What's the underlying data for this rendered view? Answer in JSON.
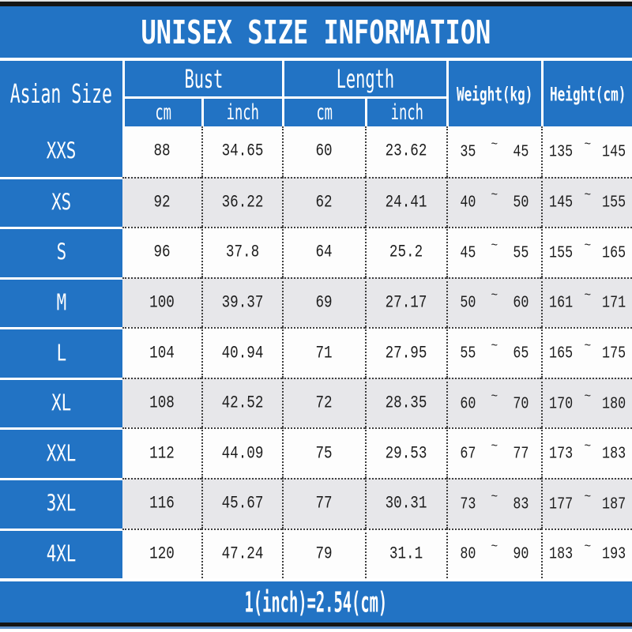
{
  "title": "UNISEX SIZE INFORMATION",
  "header": {
    "size_col": "Asian Size",
    "groups": [
      {
        "label": "Bust",
        "subs": [
          "cm",
          "inch"
        ]
      },
      {
        "label": "Length",
        "subs": [
          "cm",
          "inch"
        ]
      }
    ],
    "weight": "Weight(kg)",
    "height": "Height(cm)"
  },
  "symbols": {
    "range_tilde": "~"
  },
  "rows": [
    {
      "size": "XXS",
      "bust_cm": "88",
      "bust_in": "34.65",
      "len_cm": "60",
      "len_in": "23.62",
      "w1": "35",
      "w2": "45",
      "h1": "135",
      "h2": "145"
    },
    {
      "size": "XS",
      "bust_cm": "92",
      "bust_in": "36.22",
      "len_cm": "62",
      "len_in": "24.41",
      "w1": "40",
      "w2": "50",
      "h1": "145",
      "h2": "155"
    },
    {
      "size": "S",
      "bust_cm": "96",
      "bust_in": "37.8",
      "len_cm": "64",
      "len_in": "25.2",
      "w1": "45",
      "w2": "55",
      "h1": "155",
      "h2": "165"
    },
    {
      "size": "M",
      "bust_cm": "100",
      "bust_in": "39.37",
      "len_cm": "69",
      "len_in": "27.17",
      "w1": "50",
      "w2": "60",
      "h1": "161",
      "h2": "171"
    },
    {
      "size": "L",
      "bust_cm": "104",
      "bust_in": "40.94",
      "len_cm": "71",
      "len_in": "27.95",
      "w1": "55",
      "w2": "65",
      "h1": "165",
      "h2": "175"
    },
    {
      "size": "XL",
      "bust_cm": "108",
      "bust_in": "42.52",
      "len_cm": "72",
      "len_in": "28.35",
      "w1": "60",
      "w2": "70",
      "h1": "170",
      "h2": "180"
    },
    {
      "size": "XXL",
      "bust_cm": "112",
      "bust_in": "44.09",
      "len_cm": "75",
      "len_in": "29.53",
      "w1": "67",
      "w2": "77",
      "h1": "173",
      "h2": "183"
    },
    {
      "size": "3XL",
      "bust_cm": "116",
      "bust_in": "45.67",
      "len_cm": "77",
      "len_in": "30.31",
      "w1": "73",
      "w2": "83",
      "h1": "177",
      "h2": "187"
    },
    {
      "size": "4XL",
      "bust_cm": "120",
      "bust_in": "47.24",
      "len_cm": "79",
      "len_in": "31.1",
      "w1": "80",
      "w2": "90",
      "h1": "183",
      "h2": "193"
    }
  ],
  "footer": "1(inch)=2.54(cm)",
  "colors": {
    "accent_blue": "#2273c4",
    "stripe_gray": "#e7e7ea",
    "bar_black": "#151515",
    "text_on_blue": "#ffffff",
    "body_text": "#1d1d1d"
  },
  "chart_data": {
    "type": "table",
    "title": "UNISEX SIZE INFORMATION",
    "columns": [
      "Asian Size",
      "Bust cm",
      "Bust inch",
      "Length cm",
      "Length inch",
      "Weight(kg)",
      "Height(cm)"
    ],
    "rows": [
      [
        "XXS",
        88,
        34.65,
        60,
        23.62,
        "35~45",
        "135~145"
      ],
      [
        "XS",
        92,
        36.22,
        62,
        24.41,
        "40~50",
        "145~155"
      ],
      [
        "S",
        96,
        37.8,
        64,
        25.2,
        "45~55",
        "155~165"
      ],
      [
        "M",
        100,
        39.37,
        69,
        27.17,
        "50~60",
        "161~171"
      ],
      [
        "L",
        104,
        40.94,
        71,
        27.95,
        "55~65",
        "165~175"
      ],
      [
        "XL",
        108,
        42.52,
        72,
        28.35,
        "60~70",
        "170~180"
      ],
      [
        "XXL",
        112,
        44.09,
        75,
        29.53,
        "67~77",
        "173~183"
      ],
      [
        "3XL",
        116,
        45.67,
        77,
        30.31,
        "73~83",
        "177~187"
      ],
      [
        "4XL",
        120,
        47.24,
        79,
        31.1,
        "80~90",
        "183~193"
      ]
    ],
    "note": "1(inch)=2.54(cm)"
  }
}
